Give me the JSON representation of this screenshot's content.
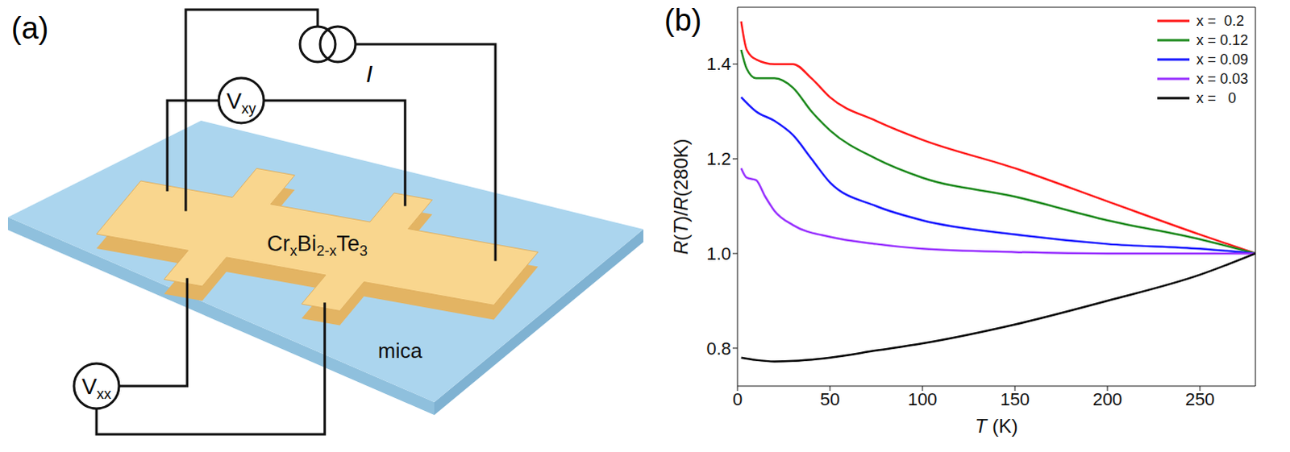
{
  "diagram": {
    "letter": "(a)",
    "source": "I",
    "hall_meter": {
      "base": "V",
      "sub": "xy"
    },
    "long_meter": {
      "base": "V",
      "sub": "xx"
    },
    "film": [
      {
        "text": "Cr"
      },
      {
        "text": "x",
        "sub": true
      },
      {
        "text": "Bi"
      },
      {
        "text": "2-x",
        "sub": true
      },
      {
        "text": "Te"
      },
      {
        "text": "3",
        "sub": true
      }
    ],
    "substrate": "mica"
  },
  "chart_data": {
    "type": "line",
    "letter": "(b)",
    "x_label": "T (K)",
    "y_label": "R(T)/R(280K)",
    "xlim": [
      0,
      280
    ],
    "xticks": [
      0,
      50,
      100,
      150,
      200,
      250
    ],
    "ylim": [
      0.72,
      1.52
    ],
    "yticks": [
      0.8,
      {
        "value": 1,
        "label": "1.0"
      },
      1.2,
      1.4
    ],
    "legend": "upper right",
    "series": [
      {
        "name": "x =  0.2",
        "color": "#ff1a1a",
        "x": [
          2,
          5,
          10,
          20,
          30,
          40,
          50,
          75,
          100,
          150,
          200,
          250,
          280
        ],
        "values": [
          1.49,
          1.43,
          1.41,
          1.4,
          1.4,
          1.37,
          1.33,
          1.28,
          1.24,
          1.18,
          1.11,
          1.04,
          1.0
        ]
      },
      {
        "name": "x = 0.12",
        "color": "#1e8a1e",
        "x": [
          2,
          5,
          10,
          20,
          30,
          40,
          50,
          75,
          100,
          150,
          200,
          250,
          280
        ],
        "values": [
          1.43,
          1.39,
          1.37,
          1.37,
          1.35,
          1.3,
          1.26,
          1.2,
          1.16,
          1.12,
          1.07,
          1.03,
          1.0
        ]
      },
      {
        "name": "x = 0.09",
        "color": "#1a1aff",
        "x": [
          2,
          10,
          20,
          30,
          40,
          50,
          75,
          100,
          150,
          200,
          250,
          280
        ],
        "values": [
          1.33,
          1.3,
          1.28,
          1.25,
          1.2,
          1.15,
          1.1,
          1.07,
          1.04,
          1.02,
          1.01,
          1.0
        ]
      },
      {
        "name": "x = 0.03",
        "color": "#9933ff",
        "x": [
          2,
          5,
          10,
          15,
          20,
          30,
          50,
          75,
          100,
          150,
          200,
          250,
          280
        ],
        "values": [
          1.18,
          1.16,
          1.155,
          1.12,
          1.09,
          1.06,
          1.035,
          1.02,
          1.01,
          1.003,
          1.0,
          1.0,
          1.0
        ]
      },
      {
        "name": "x =   0",
        "color": "#000000",
        "x": [
          2,
          10,
          20,
          30,
          50,
          75,
          100,
          150,
          200,
          250,
          280
        ],
        "values": [
          0.78,
          0.775,
          0.772,
          0.773,
          0.78,
          0.795,
          0.81,
          0.85,
          0.9,
          0.955,
          1.0
        ]
      }
    ]
  }
}
